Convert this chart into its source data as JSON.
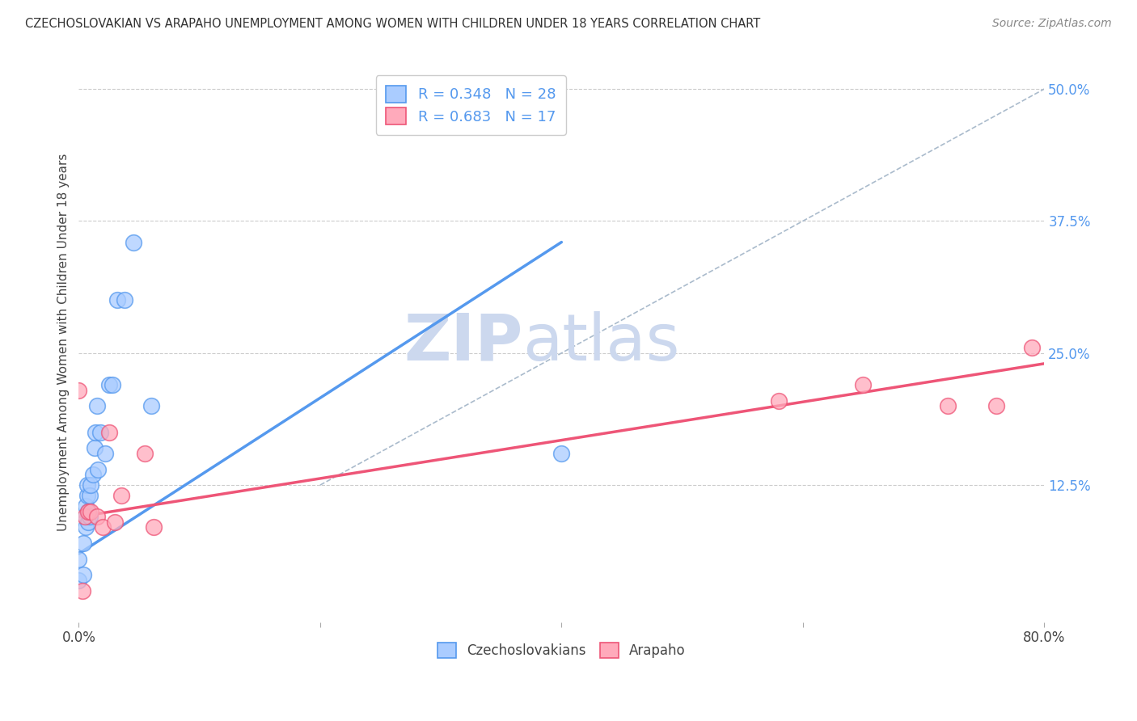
{
  "title": "CZECHOSLOVAKIAN VS ARAPAHO UNEMPLOYMENT AMONG WOMEN WITH CHILDREN UNDER 18 YEARS CORRELATION CHART",
  "source": "Source: ZipAtlas.com",
  "ylabel": "Unemployment Among Women with Children Under 18 years",
  "xlim": [
    0.0,
    0.8
  ],
  "ylim": [
    -0.005,
    0.525
  ],
  "xticks": [
    0.0,
    0.2,
    0.4,
    0.6,
    0.8
  ],
  "xticklabels": [
    "0.0%",
    "",
    "",
    "",
    "80.0%"
  ],
  "ytick_positions": [
    0.125,
    0.25,
    0.375,
    0.5
  ],
  "ytick_labels": [
    "12.5%",
    "25.0%",
    "37.5%",
    "50.0%"
  ],
  "blue_scatter_x": [
    0.0,
    0.0,
    0.004,
    0.004,
    0.006,
    0.006,
    0.006,
    0.007,
    0.007,
    0.008,
    0.008,
    0.009,
    0.009,
    0.01,
    0.012,
    0.013,
    0.014,
    0.015,
    0.016,
    0.018,
    0.022,
    0.025,
    0.028,
    0.032,
    0.038,
    0.045,
    0.06,
    0.4
  ],
  "blue_scatter_y": [
    0.035,
    0.055,
    0.04,
    0.07,
    0.085,
    0.095,
    0.105,
    0.115,
    0.125,
    0.09,
    0.1,
    0.095,
    0.115,
    0.125,
    0.135,
    0.16,
    0.175,
    0.2,
    0.14,
    0.175,
    0.155,
    0.22,
    0.22,
    0.3,
    0.3,
    0.355,
    0.2,
    0.155
  ],
  "pink_scatter_x": [
    0.0,
    0.003,
    0.005,
    0.008,
    0.01,
    0.015,
    0.02,
    0.025,
    0.03,
    0.035,
    0.055,
    0.062,
    0.58,
    0.65,
    0.72,
    0.76,
    0.79
  ],
  "pink_scatter_y": [
    0.215,
    0.025,
    0.095,
    0.1,
    0.1,
    0.095,
    0.085,
    0.175,
    0.09,
    0.115,
    0.155,
    0.085,
    0.205,
    0.22,
    0.2,
    0.2,
    0.255
  ],
  "blue_line_x": [
    0.0,
    0.4
  ],
  "blue_line_y": [
    0.06,
    0.355
  ],
  "pink_line_x": [
    0.0,
    0.8
  ],
  "pink_line_y": [
    0.095,
    0.24
  ],
  "dashed_line_x": [
    0.2,
    0.8
  ],
  "dashed_line_y": [
    0.125,
    0.5
  ],
  "blue_color": "#5599ee",
  "pink_color": "#ee5577",
  "blue_fill": "#aaccff",
  "pink_fill": "#ffaabb",
  "dashed_color": "#aabbcc",
  "watermark_zip": "ZIP",
  "watermark_atlas": "atlas",
  "watermark_color": "#ccd8ee",
  "background_color": "#ffffff",
  "legend_label_blue": "R = 0.348   N = 28",
  "legend_label_pink": "R = 0.683   N = 17",
  "bottom_label_blue": "Czechoslovakians",
  "bottom_label_pink": "Arapaho"
}
